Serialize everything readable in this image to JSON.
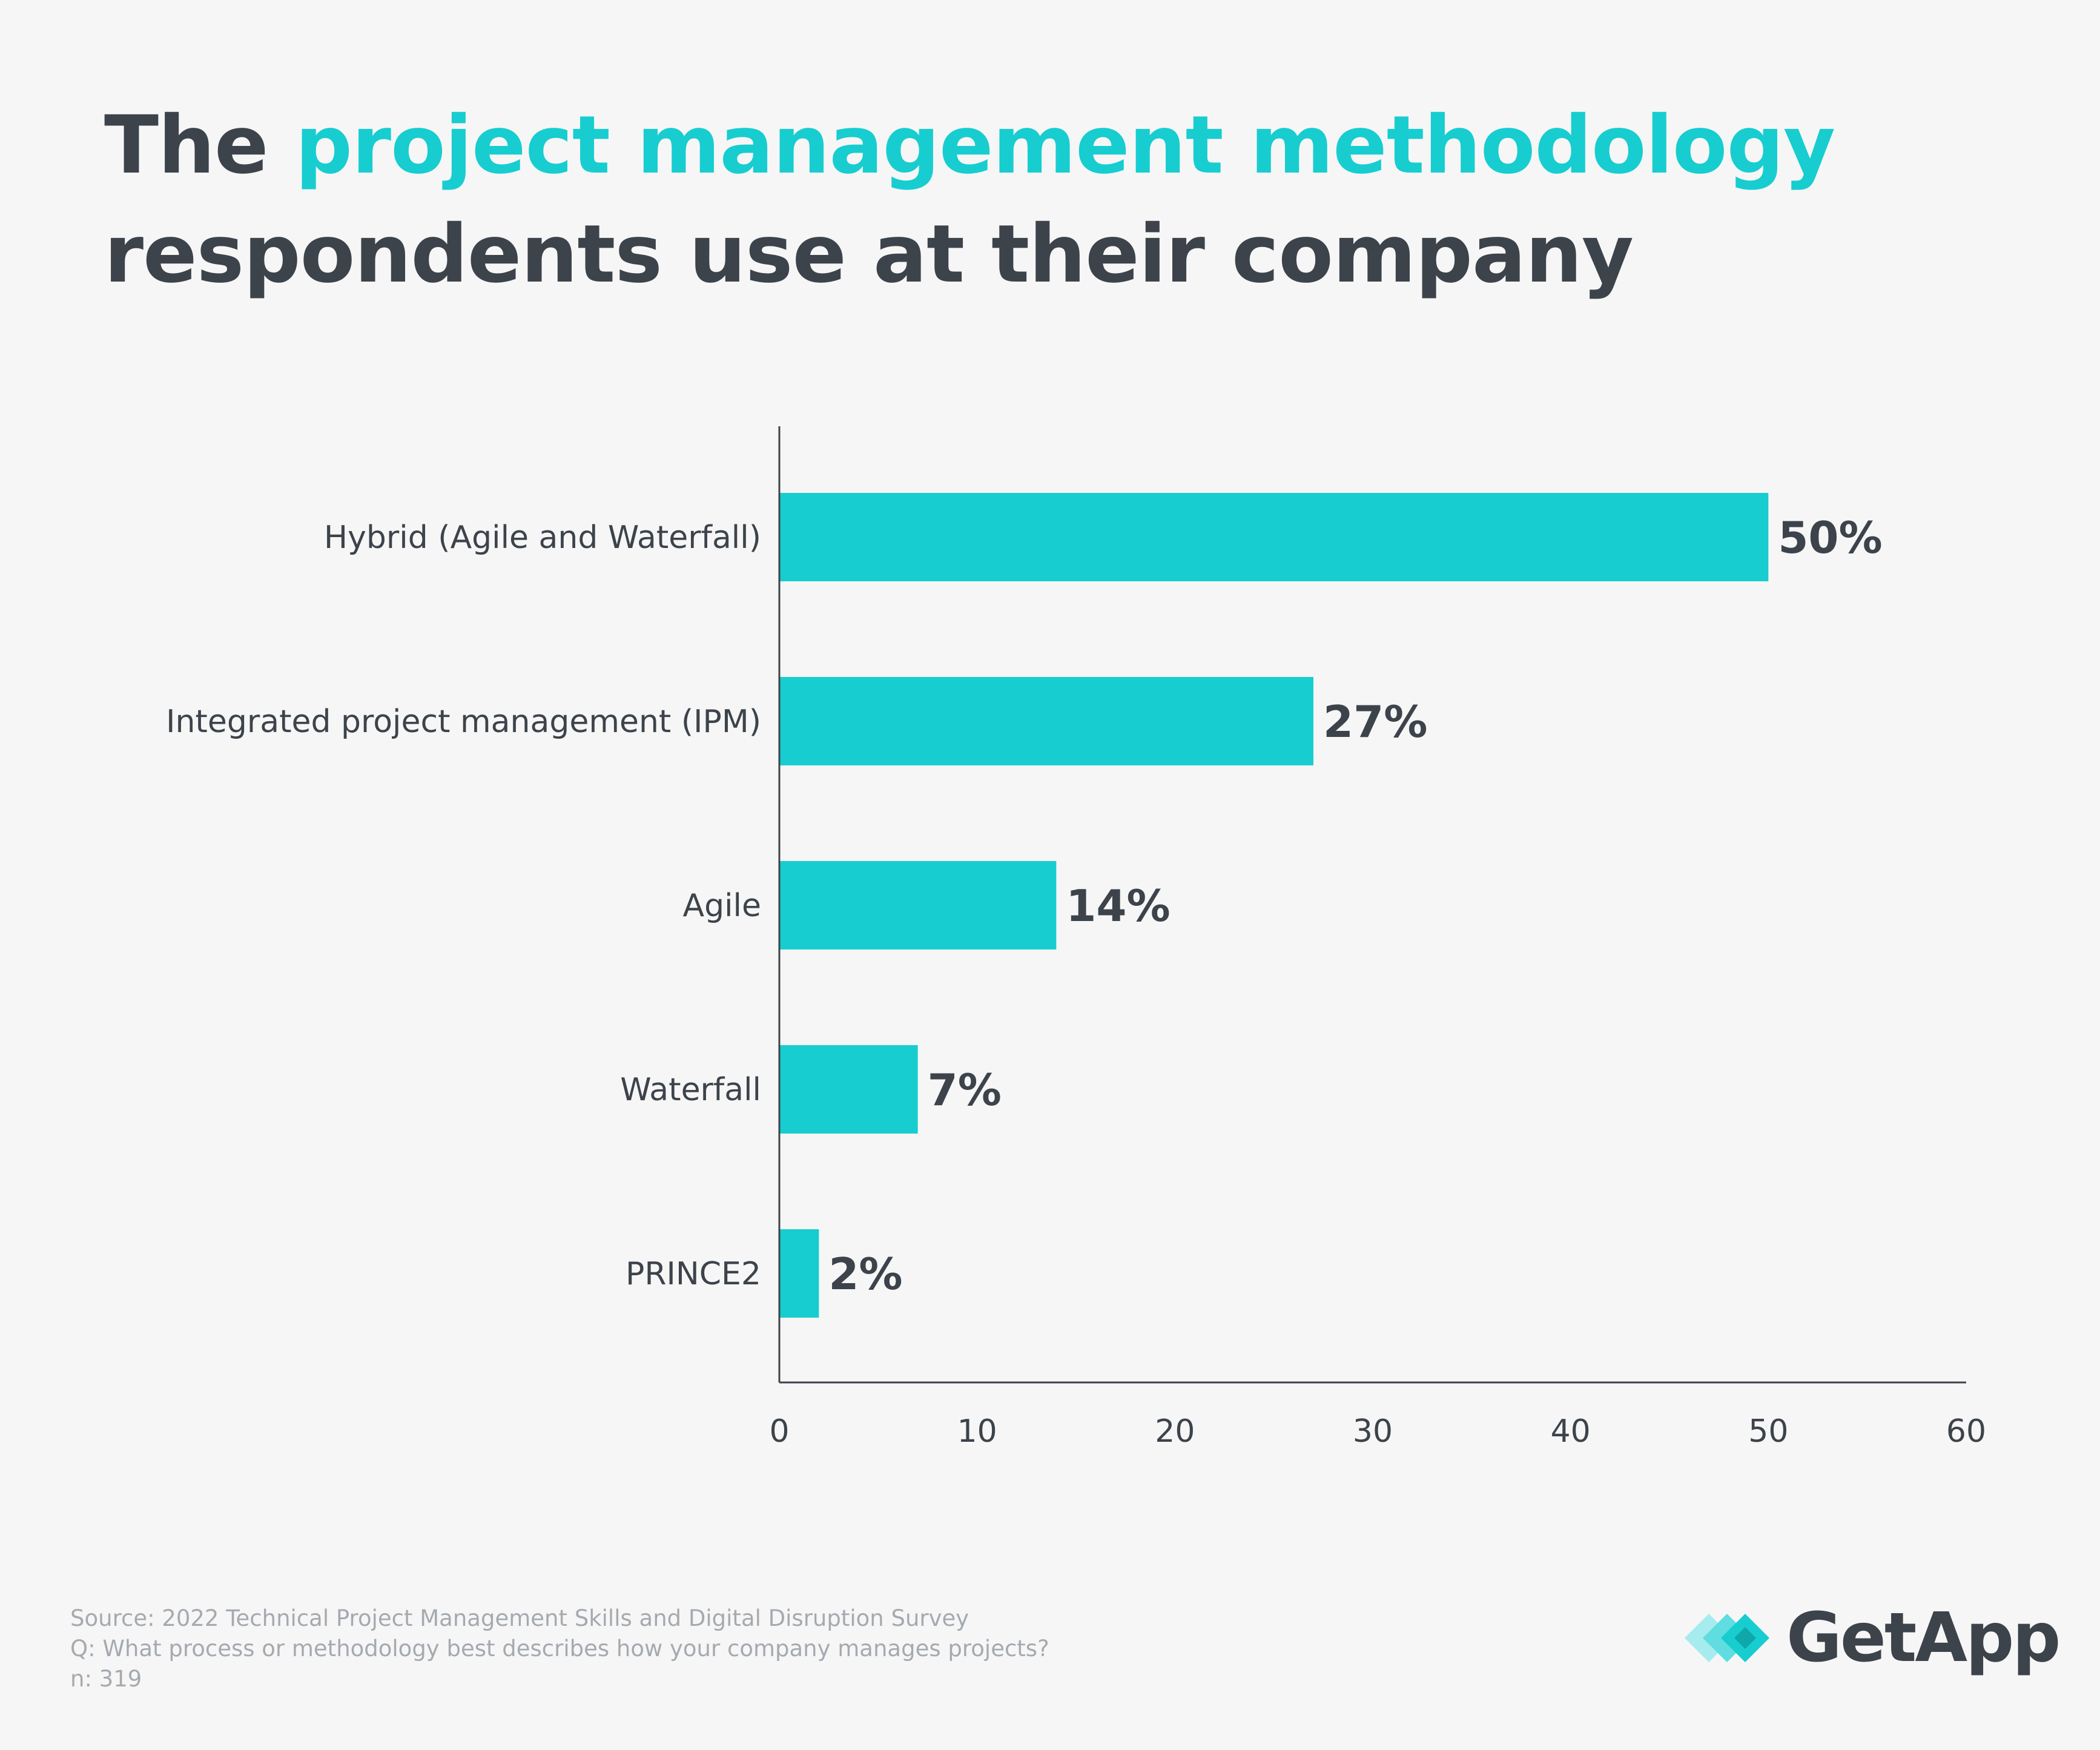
{
  "title": {
    "part1": "The ",
    "highlight": "project management methodology",
    "part2": "respondents use at their company"
  },
  "colors": {
    "accent": "#17cdd0",
    "text": "#3d434b",
    "muted": "#a5aab0",
    "background": "#f6f6f6"
  },
  "chart_data": {
    "type": "bar",
    "orientation": "horizontal",
    "title": "The project management methodology respondents use at their company",
    "categories": [
      "Hybrid (Agile and Waterfall)",
      "Integrated project management (IPM)",
      "Agile",
      "Waterfall",
      "PRINCE2"
    ],
    "values": [
      50,
      27,
      14,
      7,
      2
    ],
    "value_labels": [
      "50%",
      "27%",
      "14%",
      "7%",
      "2%"
    ],
    "xlim": [
      0,
      60
    ],
    "xticks": [
      0,
      10,
      20,
      30,
      40,
      50,
      60
    ],
    "xlabel": "",
    "ylabel": "",
    "grid": false
  },
  "footer": {
    "source": "Source: 2022 Technical Project Management Skills and Digital Disruption Survey",
    "question": "Q: What process or methodology best describes how your company manages projects?",
    "n": "n: 319"
  },
  "logo": {
    "text": "GetApp"
  }
}
